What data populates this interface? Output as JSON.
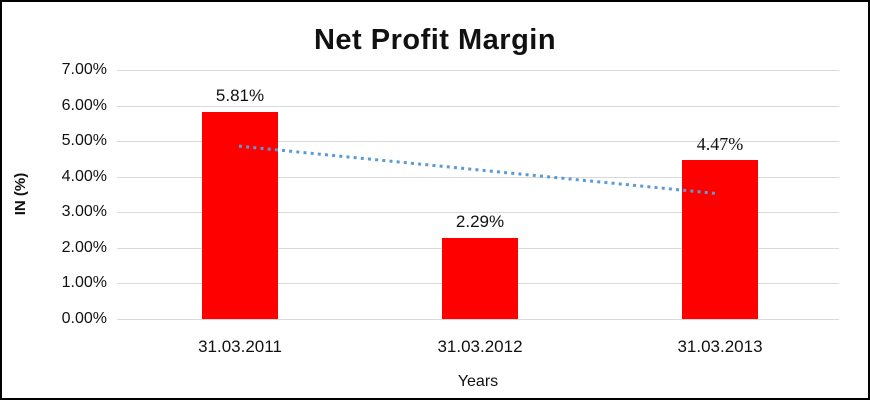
{
  "chart": {
    "title": "Net Profit Margin",
    "y_axis_title": "IN (%)",
    "x_axis_title": "Years"
  },
  "chart_data": {
    "type": "bar",
    "title": "Net Profit Margin",
    "categories": [
      "31.03.2011",
      "31.03.2012",
      "31.03.2013"
    ],
    "values": [
      5.81,
      2.29,
      4.47
    ],
    "data_labels": [
      "5.81%",
      "2.29%",
      "4.47%"
    ],
    "xlabel": "Years",
    "ylabel": "IN (%)",
    "ylim": [
      0,
      7
    ],
    "ytick_labels_top_to_bottom": [
      "7.00%",
      "6.00%",
      "5.00%",
      "4.00%",
      "3.00%",
      "2.00%",
      "1.00%",
      "0.00%"
    ],
    "grid": "horizontal",
    "legend_position": "none",
    "bar_color": "#ff0000",
    "gridline_color": "#d9d9d9",
    "trendline": {
      "type": "linear",
      "style": "dotted",
      "color": "#5b9bd5",
      "start_value": 4.86,
      "end_value": 3.52
    }
  }
}
